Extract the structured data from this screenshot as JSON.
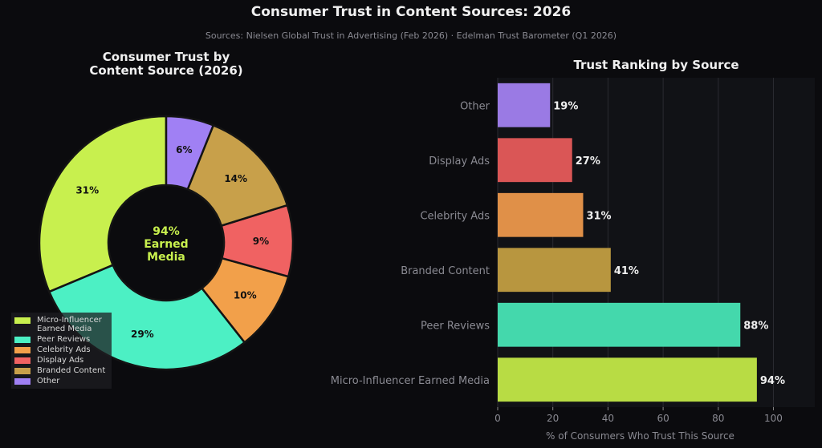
{
  "title": "Consumer Trust in Content Sources: 2026",
  "subtitle": "Sources: Nielsen Global Trust in Advertising (Feb 2026) · Edelman Trust Barometer (Q1 2026)",
  "chart_data": [
    {
      "type": "pie",
      "title": "Consumer Trust by\nContent Source (2026)",
      "center_label": {
        "value": "94%",
        "line1": "Earned",
        "line2": "Media"
      },
      "slices": [
        {
          "label": "Micro-Influencer\nEarned Media",
          "value": 31,
          "display": "31%",
          "color": "#c8f04e"
        },
        {
          "label": "Peer Reviews",
          "value": 29,
          "display": "29%",
          "color": "#4cf0c4"
        },
        {
          "label": "Celebrity Ads",
          "value": 10,
          "display": "10%",
          "color": "#f2a04a"
        },
        {
          "label": "Display Ads",
          "value": 9,
          "display": "9%",
          "color": "#f06262"
        },
        {
          "label": "Branded Content",
          "value": 14,
          "display": "14%",
          "color": "#c8a04a"
        },
        {
          "label": "Other",
          "value": 6,
          "display": "6%",
          "color": "#a080f4"
        }
      ],
      "legend_position": "lower-left"
    },
    {
      "type": "bar",
      "orientation": "horizontal",
      "title": "Trust Ranking by Source",
      "xlabel": "% of Consumers Who Trust This Source",
      "xlim": [
        0,
        115
      ],
      "xticks": [
        0,
        20,
        40,
        60,
        80,
        100
      ],
      "grid": true,
      "categories": [
        "Other",
        "Display Ads",
        "Celebrity Ads",
        "Branded Content",
        "Peer Reviews",
        "Micro-Influencer Earned Media"
      ],
      "values": [
        19,
        27,
        31,
        41,
        88,
        94
      ],
      "labels": [
        "19%",
        "27%",
        "31%",
        "41%",
        "88%",
        "94%"
      ],
      "colors": [
        "#9a7ae4",
        "#da5656",
        "#e09048",
        "#b8963f",
        "#44d8ac",
        "#b8dc44"
      ]
    }
  ]
}
